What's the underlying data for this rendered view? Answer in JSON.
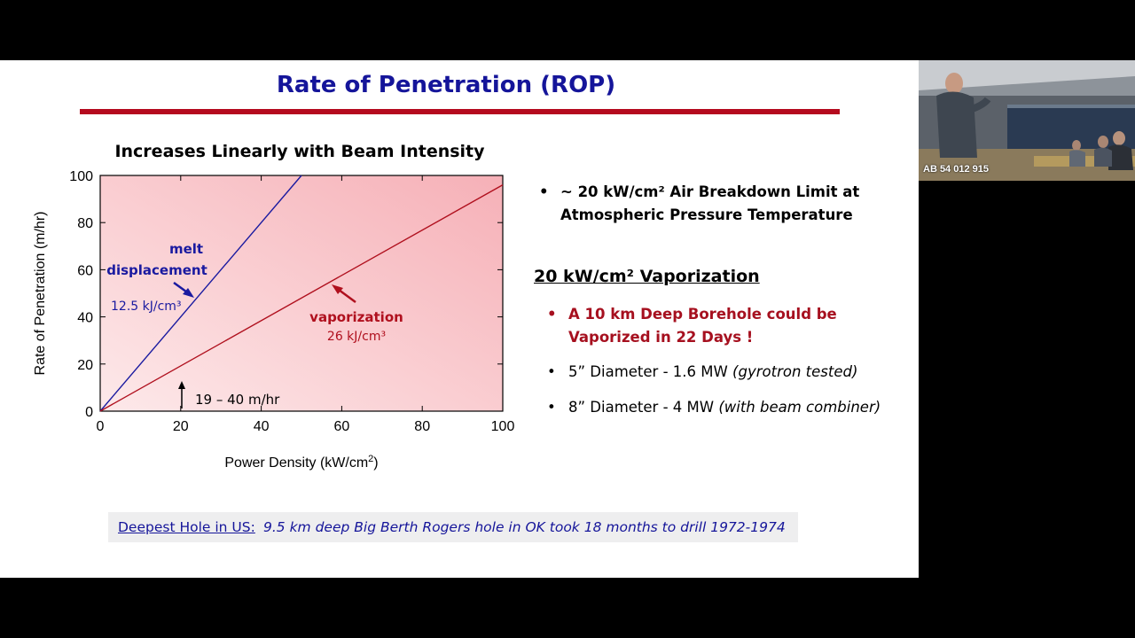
{
  "slide": {
    "title": "Rate of Penetration (ROP)",
    "chart_heading": "Increases Linearly with Beam Intensity",
    "bullets_top": [
      {
        "line1": "~ 20 kW/cm² Air Breakdown Limit at",
        "line2": "Atmospheric Pressure Temperature"
      }
    ],
    "vaporization_heading": "20 kW/cm²  Vaporization",
    "bullets_vapor": [
      {
        "line1": "A 10 km Deep Borehole could be",
        "line2": "Vaporized in 22 Days !",
        "color": "#a6101f"
      },
      {
        "text": "5” Diameter - 1.6 MW ",
        "note": "(gyrotron tested)"
      },
      {
        "text": "8” Diameter - 4 MW ",
        "note": "(with beam combiner)"
      }
    ],
    "bullet_symbol": "•",
    "footnote": {
      "label": "Deepest Hole in US:",
      "text": "9.5 km deep Big Berth Rogers hole in OK took 18 months to drill 1972-1974"
    }
  },
  "chart_data": {
    "type": "line",
    "xlabel": "Power Density (kW/cm²)",
    "ylabel": "Rate of Penetration (m/hr)",
    "xlim": [
      0,
      100
    ],
    "ylim": [
      0,
      100
    ],
    "xticks": [
      0,
      20,
      40,
      60,
      80,
      100
    ],
    "yticks": [
      0,
      20,
      40,
      60,
      80,
      100
    ],
    "series": [
      {
        "x": [
          0,
          50
        ],
        "y": [
          0,
          100
        ],
        "color": "#1a1aa0"
      },
      {
        "x": [
          0,
          100
        ],
        "y": [
          0,
          96
        ],
        "color": "#b0101e"
      }
    ],
    "annotations": [
      {
        "line1": "melt",
        "line2": "displacement",
        "energy": "12.5 kJ/cm³",
        "color": "#1a1aa0"
      },
      {
        "line1": "vaporization",
        "energy": "26 kJ/cm³",
        "color": "#b0101e"
      },
      {
        "text": "19 – 40 m/hr",
        "color": "#000000"
      }
    ],
    "background": "pink gradient"
  },
  "video": {
    "participant": "AB 54 012 915"
  }
}
